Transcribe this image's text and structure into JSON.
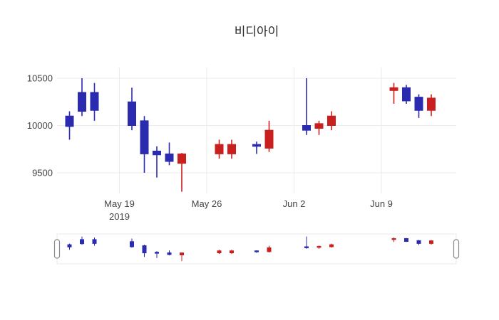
{
  "chart_data": {
    "type": "candlestick",
    "title": "비디아이",
    "up_color": "#c9201f",
    "down_color": "#2b2bb0",
    "grid": true,
    "legend": false,
    "rangeslider": true,
    "x_range": [
      "2019-05-14",
      "2019-06-15"
    ],
    "y_ticks": [
      9500,
      10000,
      10500
    ],
    "x_ticks": [
      {
        "date": "2019-05-19",
        "label": "May 19",
        "sub": "2019"
      },
      {
        "date": "2019-05-26",
        "label": "May 26",
        "sub": ""
      },
      {
        "date": "2019-06-02",
        "label": "Jun 2",
        "sub": ""
      },
      {
        "date": "2019-06-09",
        "label": "Jun 9",
        "sub": ""
      }
    ],
    "candles": [
      {
        "date": "2019-05-15",
        "open": 10100,
        "high": 10150,
        "low": 9850,
        "close": 9990
      },
      {
        "date": "2019-05-16",
        "open": 10350,
        "high": 10500,
        "low": 10100,
        "close": 10150
      },
      {
        "date": "2019-05-17",
        "open": 10350,
        "high": 10450,
        "low": 10050,
        "close": 10160
      },
      {
        "date": "2019-05-20",
        "open": 10250,
        "high": 10400,
        "low": 9950,
        "close": 10000
      },
      {
        "date": "2019-05-21",
        "open": 10050,
        "high": 10100,
        "low": 9500,
        "close": 9700
      },
      {
        "date": "2019-05-22",
        "open": 9730,
        "high": 9780,
        "low": 9450,
        "close": 9690
      },
      {
        "date": "2019-05-23",
        "open": 9700,
        "high": 9820,
        "low": 9580,
        "close": 9620
      },
      {
        "date": "2019-05-24",
        "open": 9600,
        "high": 9710,
        "low": 9300,
        "close": 9700
      },
      {
        "date": "2019-05-27",
        "open": 9700,
        "high": 9850,
        "low": 9650,
        "close": 9800
      },
      {
        "date": "2019-05-28",
        "open": 9700,
        "high": 9850,
        "low": 9650,
        "close": 9800
      },
      {
        "date": "2019-05-30",
        "open": 9800,
        "high": 9830,
        "low": 9700,
        "close": 9780
      },
      {
        "date": "2019-05-31",
        "open": 9760,
        "high": 10050,
        "low": 9720,
        "close": 9950
      },
      {
        "date": "2019-06-03",
        "open": 10000,
        "high": 10500,
        "low": 9900,
        "close": 9950
      },
      {
        "date": "2019-06-04",
        "open": 9970,
        "high": 10050,
        "low": 9900,
        "close": 10020
      },
      {
        "date": "2019-06-05",
        "open": 10000,
        "high": 10150,
        "low": 9950,
        "close": 10100
      },
      {
        "date": "2019-06-10",
        "open": 10370,
        "high": 10450,
        "low": 10230,
        "close": 10400
      },
      {
        "date": "2019-06-11",
        "open": 10400,
        "high": 10430,
        "low": 10230,
        "close": 10260
      },
      {
        "date": "2019-06-12",
        "open": 10300,
        "high": 10330,
        "low": 10080,
        "close": 10160
      },
      {
        "date": "2019-06-13",
        "open": 10160,
        "high": 10330,
        "low": 10100,
        "close": 10290
      }
    ]
  }
}
